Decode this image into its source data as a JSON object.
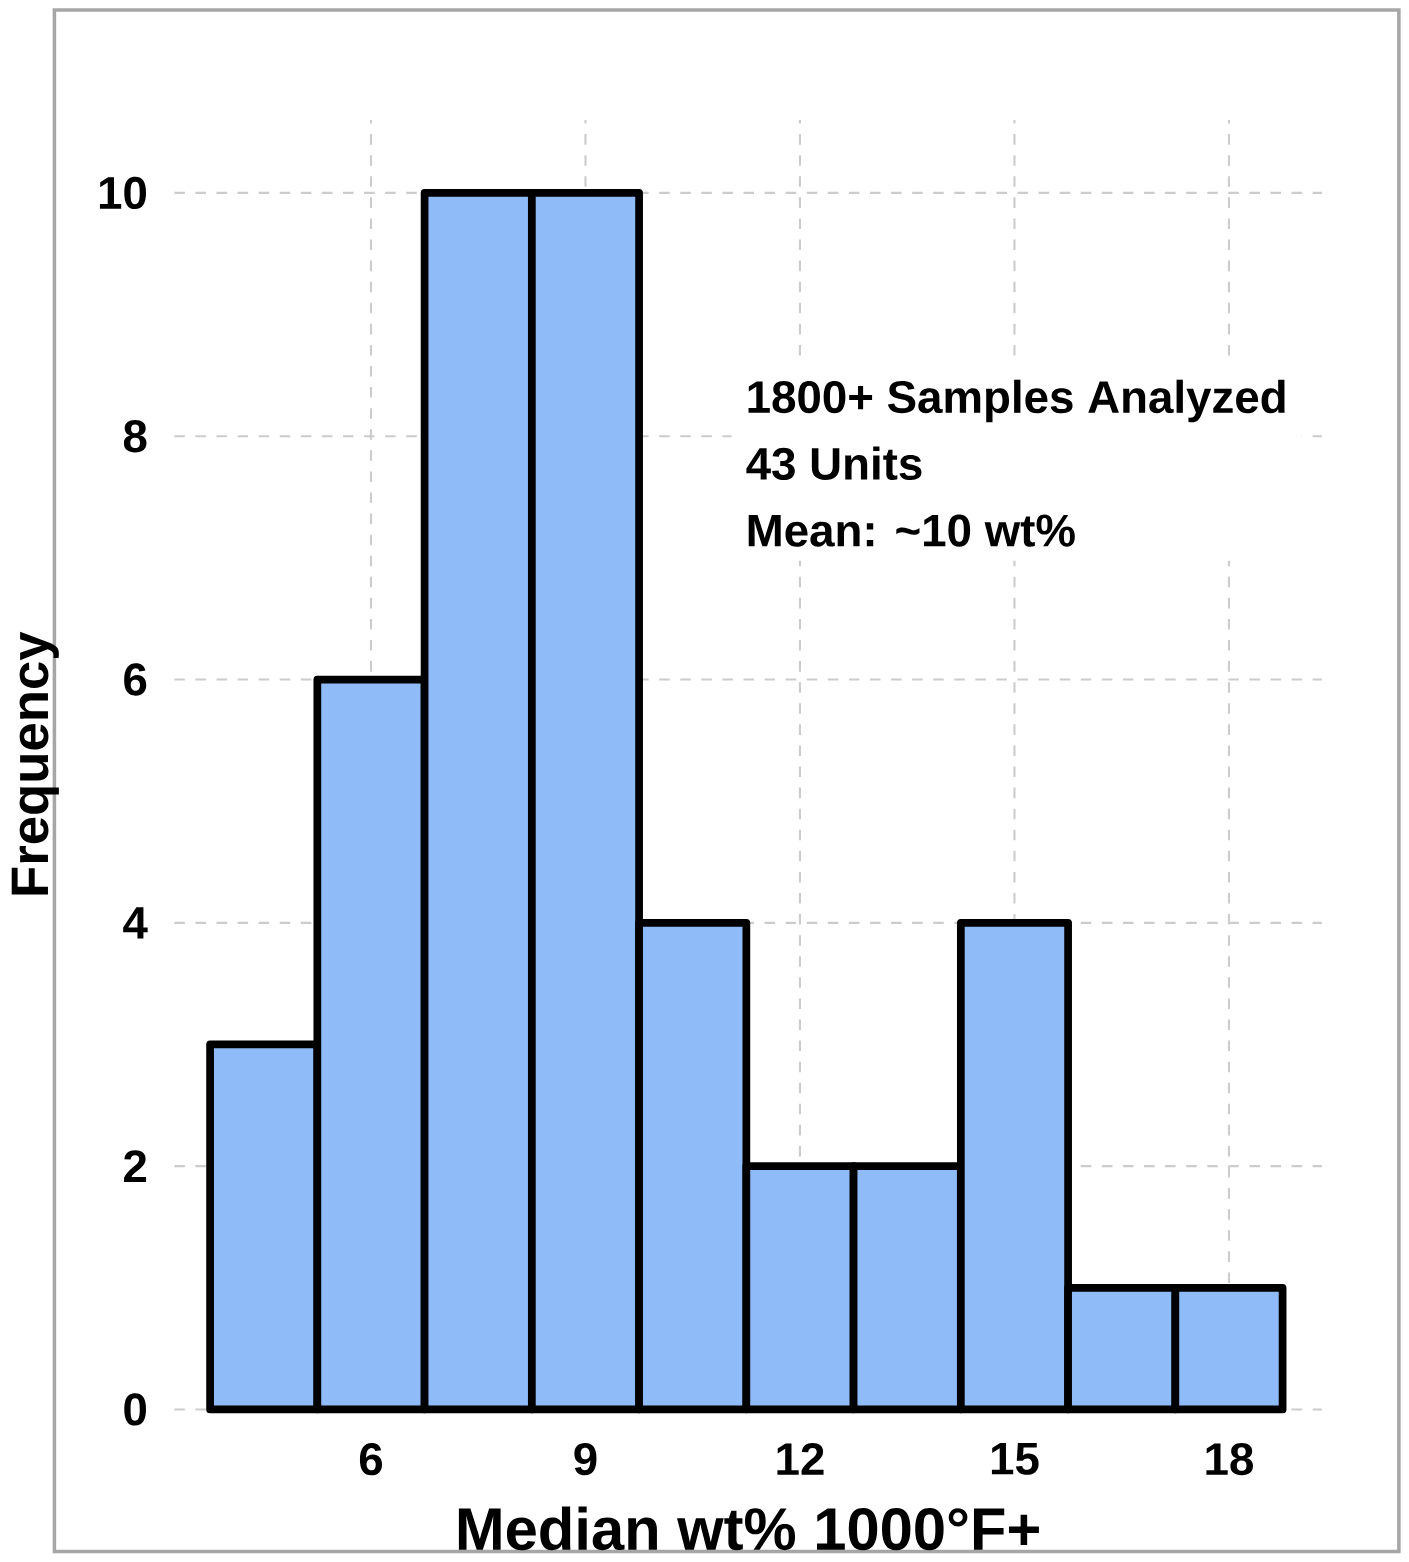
{
  "chart_data": {
    "type": "histogram",
    "xlabel": "Median wt% 1000°F+",
    "ylabel": "Frequency",
    "bins": [
      3.75,
      5.25,
      6.75,
      8.25,
      9.75,
      11.25,
      12.75,
      14.25,
      15.75,
      17.25,
      18.75
    ],
    "values": [
      3,
      6,
      10,
      10,
      4,
      2,
      2,
      4,
      1,
      1
    ],
    "color": "#8fbcf9",
    "xlim": [
      3.25,
      19.3
    ],
    "ylim": [
      0,
      10.6
    ],
    "xticks": [
      6,
      9,
      12,
      15,
      18
    ],
    "yticks": [
      0,
      2,
      4,
      6,
      8,
      10
    ],
    "grid": true,
    "annotations": [
      "1800+ Samples Analyzed",
      "43 Units",
      "Mean: ~10 wt%"
    ]
  }
}
